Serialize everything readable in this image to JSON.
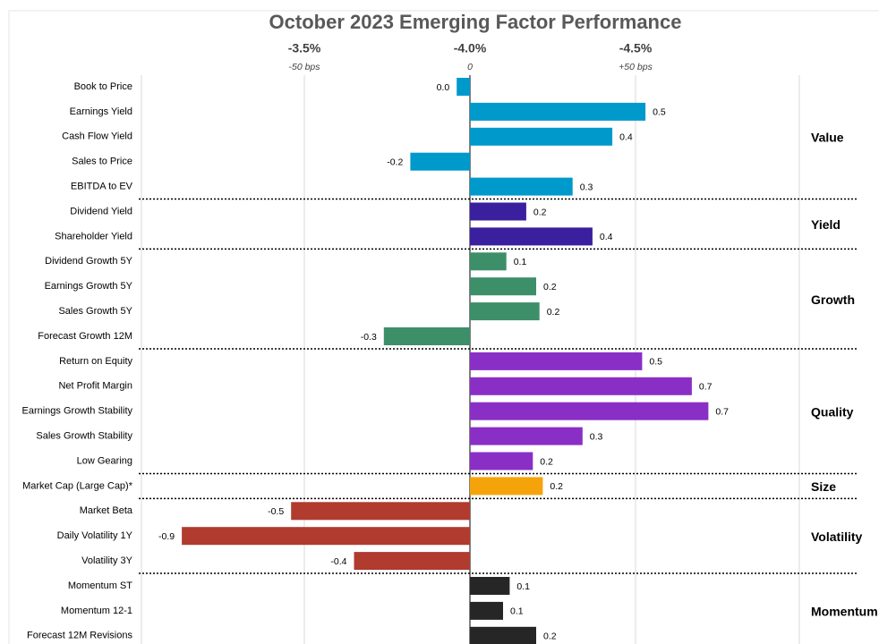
{
  "chart_data": {
    "type": "bar",
    "orientation": "horizontal",
    "title": "October 2023 Emerging Factor Performance",
    "xlim": [
      -1.0,
      1.0
    ],
    "xticks": [
      {
        "value": -0.5,
        "label": "-3.5%"
      },
      {
        "value": 0,
        "label": "-4.0%"
      },
      {
        "value": 0.5,
        "label": "-4.5%"
      }
    ],
    "xtick_sublabels": [
      "-50 bps",
      "0",
      "+50 bps"
    ],
    "grid": true,
    "series": [
      {
        "name": "Value",
        "color": "#0099cc",
        "categories": [
          "Book to Price",
          "Earnings Yield",
          "Cash Flow Yield",
          "Sales to Price",
          "EBITDA to EV"
        ],
        "values": [
          -0.04,
          0.53,
          0.43,
          -0.18,
          0.31
        ],
        "value_labels": [
          "0.0",
          "0.5",
          "0.4",
          "-0.2",
          "0.3"
        ]
      },
      {
        "name": "Yield",
        "color": "#3a1f9e",
        "categories": [
          "Dividend Yield",
          "Shareholder Yield"
        ],
        "values": [
          0.17,
          0.37
        ],
        "value_labels": [
          "0.2",
          "0.4"
        ]
      },
      {
        "name": "Growth",
        "color": "#3d8f6a",
        "categories": [
          "Dividend Growth 5Y",
          "Earnings Growth 5Y",
          "Sales Growth 5Y",
          "Forecast Growth 12M"
        ],
        "values": [
          0.11,
          0.2,
          0.21,
          -0.26
        ],
        "value_labels": [
          "0.1",
          "0.2",
          "0.2",
          "-0.3"
        ]
      },
      {
        "name": "Quality",
        "color": "#8a2fc6",
        "categories": [
          "Return on Equity",
          "Net Profit Margin",
          "Earnings Growth Stability",
          "Sales Growth Stability",
          "Low Gearing"
        ],
        "values": [
          0.52,
          0.67,
          0.72,
          0.34,
          0.19
        ],
        "value_labels": [
          "0.5",
          "0.7",
          "0.7",
          "0.3",
          "0.2"
        ]
      },
      {
        "name": "Size",
        "color": "#f5a30a",
        "categories": [
          "Market Cap (Large Cap)*"
        ],
        "values": [
          0.22
        ],
        "value_labels": [
          "0.2"
        ]
      },
      {
        "name": "Volatility",
        "color": "#b03b2e",
        "categories": [
          "Market Beta",
          "Daily Volatility 1Y",
          "Volatility 3Y"
        ],
        "values": [
          -0.54,
          -0.87,
          -0.35
        ],
        "value_labels": [
          "-0.5",
          "-0.9",
          "-0.4"
        ]
      },
      {
        "name": "Momentum",
        "color": "#262626",
        "categories": [
          "Momentum ST",
          "Momentum 12-1",
          "Forecast 12M Revisions"
        ],
        "values": [
          0.12,
          0.1,
          0.2
        ],
        "value_labels": [
          "0.1",
          "0.1",
          "0.2"
        ]
      }
    ]
  }
}
